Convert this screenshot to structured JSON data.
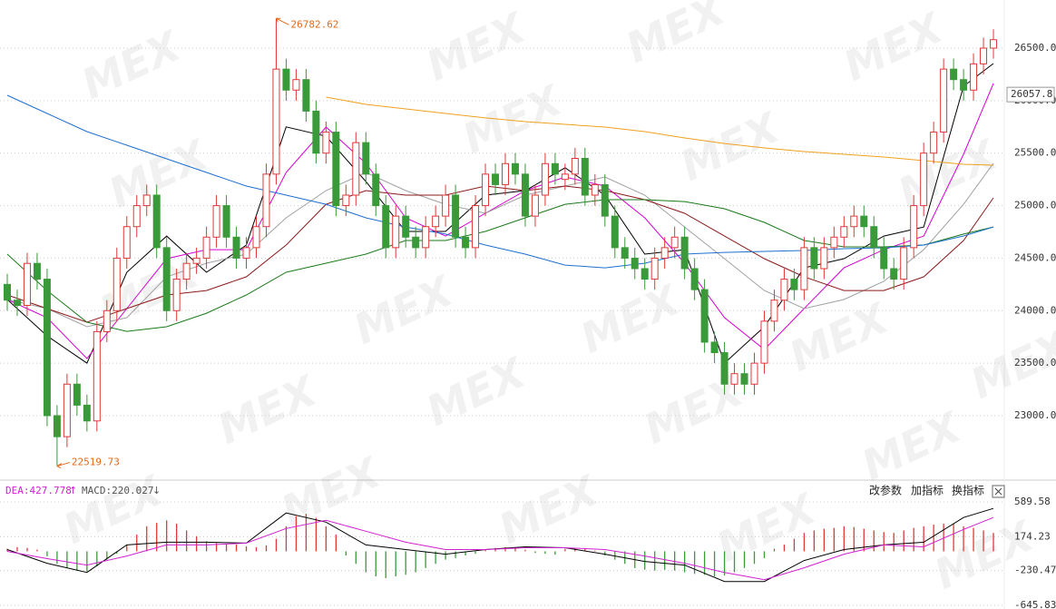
{
  "chart_data": {
    "type": "candlestick",
    "watermark": "MEX",
    "ylim": [
      22395,
      26958
    ],
    "yticks": [
      {
        "value": 23000,
        "label": "23000.0"
      },
      {
        "value": 23500,
        "label": "23500.0"
      },
      {
        "value": 24000,
        "label": "24000.0"
      },
      {
        "value": 24500,
        "label": "24500.0"
      },
      {
        "value": 25000,
        "label": "25000.0"
      },
      {
        "value": 25500,
        "label": "25500.0"
      },
      {
        "value": 26000,
        "label": "26000.0"
      },
      {
        "value": 26500,
        "label": "26500.0"
      }
    ],
    "grid": true,
    "up_color": "#e0383a",
    "down_color": "#3a9a3a",
    "annotation_color": "#e06a1a",
    "current_price": 26057.8,
    "open": [
      24250,
      24100,
      24050,
      24450,
      24300,
      23000,
      22800,
      23300,
      23100,
      22950,
      23800,
      24000,
      24500,
      24800,
      25000,
      25100,
      24600,
      24000,
      24300,
      24450,
      24500,
      24700,
      25000,
      24700,
      24500,
      24600,
      24800,
      25300,
      26300,
      26100,
      26200,
      25900,
      25500,
      25700,
      25000,
      25100,
      25600,
      25300,
      25000,
      24600,
      24900,
      24700,
      24600,
      24800,
      24900,
      25100,
      24700,
      24600,
      25000,
      25300,
      25200,
      25400,
      25300,
      24900,
      25100,
      25400,
      25250,
      25300,
      25450,
      25100,
      25200,
      24900,
      24600,
      24500,
      24400,
      24300,
      24500,
      24600,
      24700,
      24400,
      24200,
      23700,
      23600,
      23300,
      23400,
      23300,
      23500,
      23900,
      24100,
      24300,
      24200,
      24600,
      24400,
      24600,
      24700,
      24800,
      24900,
      24800,
      24600,
      24400,
      24300,
      24600,
      25000,
      25500,
      25700,
      26300,
      26200,
      26100,
      26350,
      26500
    ],
    "high": [
      24350,
      24200,
      24550,
      24550,
      24400,
      23100,
      23400,
      23400,
      23200,
      23900,
      24100,
      24600,
      24900,
      25100,
      25200,
      25200,
      24700,
      24400,
      24550,
      24600,
      24800,
      25100,
      25100,
      24800,
      24700,
      24900,
      25400,
      26782.62,
      26400,
      26300,
      26300,
      26000,
      25800,
      25800,
      25200,
      25700,
      25700,
      25400,
      25100,
      25000,
      25000,
      24800,
      24900,
      25000,
      25200,
      25200,
      24800,
      25100,
      25400,
      25400,
      25500,
      25500,
      25400,
      25200,
      25500,
      25500,
      25400,
      25550,
      25550,
      25300,
      25300,
      25000,
      24700,
      24600,
      24500,
      24600,
      24700,
      24800,
      24800,
      24500,
      24300,
      23800,
      23700,
      23500,
      23500,
      23600,
      24000,
      24200,
      24400,
      24400,
      24700,
      24700,
      24700,
      24800,
      24900,
      25000,
      25000,
      24900,
      24700,
      24500,
      24700,
      25100,
      25600,
      25800,
      26400,
      26400,
      26300,
      26450,
      26600,
      26680
    ],
    "low": [
      24000,
      23950,
      23950,
      24200,
      22900,
      22519.73,
      22700,
      23000,
      22850,
      22850,
      23700,
      23900,
      24400,
      24700,
      24900,
      24500,
      23900,
      23900,
      24200,
      24350,
      24400,
      24600,
      24600,
      24400,
      24400,
      24500,
      24700,
      25200,
      26000,
      26000,
      25800,
      25400,
      25400,
      24900,
      24900,
      25000,
      25200,
      24900,
      24500,
      24500,
      24600,
      24500,
      24500,
      24700,
      24800,
      24600,
      24500,
      24500,
      24900,
      25100,
      25100,
      25200,
      24800,
      24800,
      25000,
      25200,
      25150,
      25200,
      25000,
      25000,
      24800,
      24500,
      24400,
      24300,
      24200,
      24200,
      24400,
      24500,
      24300,
      24100,
      23600,
      23500,
      23200,
      23200,
      23200,
      23200,
      23400,
      23800,
      24000,
      24100,
      24100,
      24300,
      24300,
      24500,
      24600,
      24700,
      24700,
      24500,
      24300,
      24200,
      24200,
      24500,
      24900,
      25400,
      25600,
      26100,
      26000,
      26000,
      26250,
      26400
    ],
    "close": [
      24100,
      24050,
      24450,
      24300,
      23000,
      22800,
      23300,
      23100,
      22950,
      23800,
      24000,
      24500,
      24800,
      25000,
      25100,
      24600,
      24000,
      24300,
      24450,
      24500,
      24700,
      25000,
      24700,
      24500,
      24600,
      24800,
      25300,
      26300,
      26100,
      26200,
      25900,
      25500,
      25700,
      25000,
      25100,
      25600,
      25300,
      25000,
      24600,
      24900,
      24700,
      24600,
      24800,
      24900,
      25100,
      24700,
      24600,
      25000,
      25300,
      25200,
      25400,
      25300,
      24900,
      25100,
      25400,
      25300,
      25300,
      25450,
      25100,
      25200,
      24900,
      24600,
      24500,
      24400,
      24300,
      24500,
      24600,
      24700,
      24400,
      24200,
      23700,
      23600,
      23300,
      23400,
      23300,
      23500,
      23900,
      24100,
      24300,
      24200,
      24600,
      24400,
      24600,
      24700,
      24800,
      24900,
      24800,
      24600,
      24400,
      24300,
      24600,
      25000,
      25500,
      25700,
      26300,
      26200,
      26100,
      26350,
      26500,
      26580
    ],
    "ma_x": [
      0,
      4,
      8,
      12,
      16,
      20,
      24,
      28,
      32,
      36,
      40,
      44,
      48,
      52,
      56,
      60,
      64,
      68,
      72,
      76,
      80,
      84,
      88,
      92,
      96,
      99
    ],
    "ma_series": [
      {
        "color": "#000000",
        "values": [
          24106,
          23760,
          23500,
          24365,
          24710,
          24365,
          24625,
          25750,
          25660,
          25230,
          24754,
          24754,
          25100,
          25143,
          25360,
          25100,
          24538,
          24580,
          23500,
          23847,
          24408,
          24495,
          24710,
          24797,
          26137,
          26353
        ]
      },
      {
        "color": "#d400d4",
        "values": [
          24106,
          23933,
          23544,
          24020,
          24495,
          24581,
          24581,
          25316,
          25748,
          25402,
          24884,
          24710,
          24927,
          25143,
          25273,
          25186,
          24884,
          24452,
          23933,
          23630,
          24020,
          24408,
          24581,
          24710,
          25489,
          26163
        ]
      },
      {
        "color": "#a0a0a0",
        "values": [
          24106,
          24020,
          23847,
          23933,
          24322,
          24452,
          24538,
          24884,
          25143,
          25316,
          25143,
          25013,
          24927,
          25100,
          25186,
          25273,
          25100,
          24797,
          24495,
          24192,
          24020,
          24106,
          24279,
          24581,
          25013,
          25402
        ]
      },
      {
        "color": "#8b1a1a",
        "values": [
          24149,
          24020,
          23890,
          24020,
          24149,
          24192,
          24322,
          24625,
          25013,
          25143,
          25100,
          25100,
          25186,
          25143,
          25186,
          25143,
          25057,
          24927,
          24710,
          24495,
          24322,
          24192,
          24192,
          24322,
          24668,
          25074
        ]
      },
      {
        "color": "#1a7a1a",
        "values": [
          24538,
          24192,
          23890,
          23803,
          23847,
          23976,
          24149,
          24365,
          24452,
          24538,
          24668,
          24668,
          24754,
          24884,
          25013,
          25057,
          25057,
          25039,
          24970,
          24841,
          24668,
          24607,
          24607,
          24625,
          24729,
          24797
        ]
      },
      {
        "color": "#1f6fd0",
        "values": [
          26051,
          25878,
          25705,
          25575,
          25446,
          25316,
          25186,
          25100,
          25013,
          24884,
          24797,
          24729,
          24625,
          24538,
          24434,
          24408,
          24452,
          24538,
          24555,
          24564,
          24573,
          24590,
          24599,
          24625,
          24711,
          24797
        ]
      },
      {
        "color": "#f0a020",
        "values": [
          null,
          null,
          null,
          null,
          null,
          null,
          null,
          null,
          26033,
          25964,
          25921,
          25878,
          25835,
          25800,
          25774,
          25748,
          25705,
          25644,
          25592,
          25549,
          25515,
          25489,
          25463,
          25428,
          25394,
          25385
        ]
      }
    ],
    "macd": {
      "dea_label": "DEA:427.778",
      "dea_arrow": "↑",
      "macd_label": "MACD:220.027",
      "macd_arrow": "↓",
      "buttons": [
        "改参数",
        "加指标",
        "换指标"
      ],
      "ylim": [
        -690,
        808
      ],
      "yticks": [
        589.58,
        174.23,
        -230.47,
        -645.83
      ],
      "dif_color": "#000000",
      "dea_color": "#d020d0",
      "histogram": [
        30,
        50,
        40,
        20,
        -60,
        -150,
        -200,
        -230,
        -240,
        -180,
        -100,
        -30,
        80,
        200,
        300,
        340,
        370,
        330,
        250,
        180,
        120,
        100,
        90,
        80,
        60,
        50,
        70,
        150,
        300,
        420,
        450,
        400,
        300,
        200,
        -50,
        -150,
        -250,
        -300,
        -320,
        -300,
        -280,
        -250,
        -200,
        -150,
        -100,
        -80,
        -50,
        -30,
        20,
        40,
        50,
        40,
        20,
        -20,
        -30,
        -40,
        30,
        40,
        30,
        10,
        -50,
        -100,
        -150,
        -200,
        -220,
        -230,
        -220,
        -230,
        -250,
        -270,
        -280,
        -300,
        -290,
        -250,
        -200,
        -150,
        -80,
        30,
        80,
        150,
        220,
        250,
        270,
        280,
        300,
        290,
        270,
        250,
        230,
        220,
        250,
        280,
        300,
        320,
        330,
        330,
        300,
        280,
        250,
        220
      ],
      "dif": [
        21,
        -143,
        -252,
        76,
        109,
        109,
        98,
        458,
        349,
        76,
        21,
        -34,
        21,
        54,
        43,
        -34,
        -121,
        -165,
        -361,
        -361,
        -110,
        21,
        76,
        109,
        404,
        513
      ],
      "dea": [
        -1,
        -88,
        -165,
        -56,
        76,
        76,
        98,
        273,
        371,
        240,
        109,
        21,
        21,
        43,
        43,
        21,
        -56,
        -143,
        -252,
        -339,
        -197,
        -34,
        76,
        54,
        262,
        404
      ]
    }
  }
}
